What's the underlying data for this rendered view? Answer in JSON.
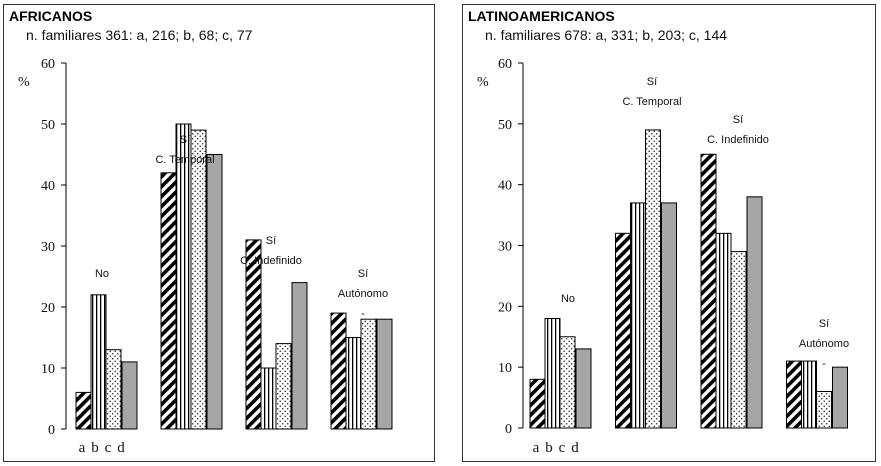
{
  "chart_data": [
    {
      "type": "bar",
      "title": "AFRICANOS",
      "subtitle": "n. familiares 361: a, 216; b, 68; c, 77",
      "ylabel": "%",
      "ylim": [
        0,
        60
      ],
      "yticks": [
        "0",
        "10",
        "20",
        "30",
        "40",
        "50",
        "60"
      ],
      "series_labels": [
        "a",
        "b",
        "c",
        "d"
      ],
      "series_patterns": [
        "diagonal-hatch",
        "vertical-lines",
        "dots",
        "solid-gray"
      ],
      "categories": [
        {
          "label": [
            "No"
          ],
          "values": [
            6,
            22,
            13,
            11
          ]
        },
        {
          "label": [
            "Sí",
            "C. Temporal"
          ],
          "values": [
            42,
            50,
            49,
            45
          ]
        },
        {
          "label": [
            "Sí",
            "C. Indefinido"
          ],
          "values": [
            31,
            10,
            14,
            24
          ]
        },
        {
          "label": [
            "Sí",
            "Autónomo",
            "-"
          ],
          "values": [
            19,
            15,
            18,
            18
          ]
        }
      ]
    },
    {
      "type": "bar",
      "title": "LATINOAMERICANOS",
      "subtitle": "n. familiares 678: a, 331; b, 203; c, 144",
      "ylabel": "%",
      "ylim": [
        0,
        60
      ],
      "yticks": [
        "0",
        "10",
        "20",
        "30",
        "40",
        "50",
        "60"
      ],
      "series_labels": [
        "a",
        "b",
        "c",
        "d"
      ],
      "series_patterns": [
        "diagonal-hatch",
        "vertical-lines",
        "dots",
        "solid-gray"
      ],
      "categories": [
        {
          "label": [
            "No"
          ],
          "values": [
            8,
            18,
            15,
            13
          ]
        },
        {
          "label": [
            "Sí",
            "C. Temporal"
          ],
          "values": [
            32,
            37,
            49,
            37
          ]
        },
        {
          "label": [
            "Sí",
            "C. Indefinido"
          ],
          "values": [
            45,
            32,
            29,
            38
          ]
        },
        {
          "label": [
            "Sí",
            "Autónomo",
            "-"
          ],
          "values": [
            11,
            11,
            6,
            10
          ]
        }
      ]
    }
  ]
}
